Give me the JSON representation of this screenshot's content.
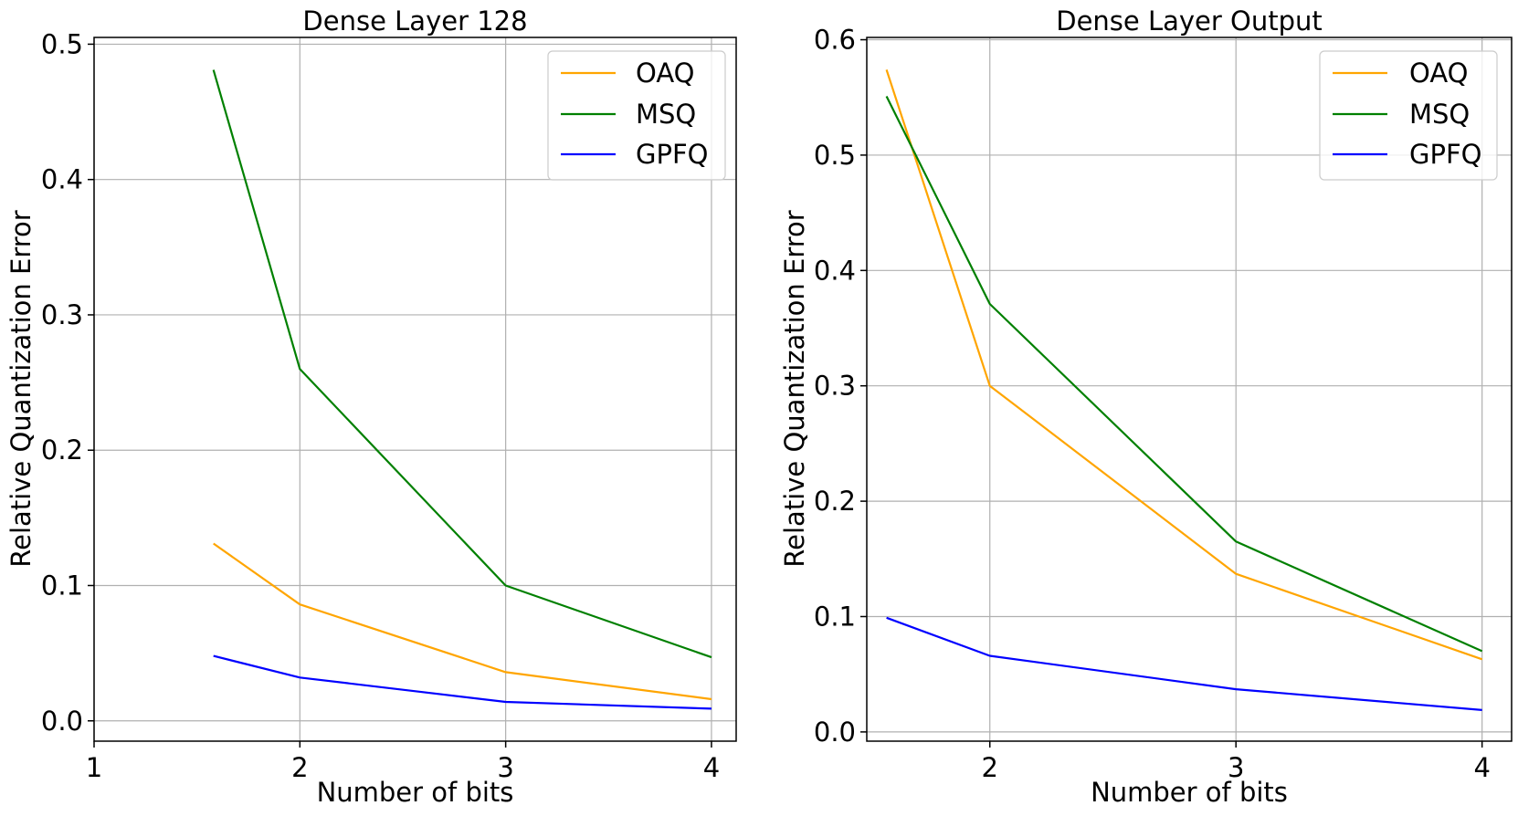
{
  "chart_data": [
    {
      "type": "line",
      "title": "Dense Layer 128",
      "xlabel": "Number of bits",
      "ylabel": "Relative Quantization Error",
      "xlim": [
        1,
        4.12
      ],
      "ylim": [
        -0.015,
        0.505
      ],
      "xticks": [
        1,
        2,
        3,
        4
      ],
      "xtick_labels": [
        "1",
        "2",
        "3",
        "4"
      ],
      "yticks": [
        0.0,
        0.1,
        0.2,
        0.3,
        0.4,
        0.5
      ],
      "ytick_labels": [
        "0.0",
        "0.1",
        "0.2",
        "0.3",
        "0.4",
        "0.5"
      ],
      "grid": true,
      "legend_position": "top-right",
      "x": [
        1.58,
        2,
        3,
        4
      ],
      "series": [
        {
          "name": "OAQ",
          "color": "#ffa500",
          "values": [
            0.131,
            0.086,
            0.036,
            0.016
          ]
        },
        {
          "name": "MSQ",
          "color": "#008000",
          "values": [
            0.481,
            0.26,
            0.1,
            0.047
          ]
        },
        {
          "name": "GPFQ",
          "color": "#0000ff",
          "values": [
            0.048,
            0.032,
            0.014,
            0.009
          ]
        }
      ]
    },
    {
      "type": "line",
      "title": "Dense Layer Output",
      "xlabel": "Number of bits",
      "ylabel": "Relative Quantization Error",
      "xlim": [
        1.5,
        4.12
      ],
      "ylim": [
        -0.008,
        0.602
      ],
      "xticks": [
        2,
        3,
        4
      ],
      "xtick_labels": [
        "2",
        "3",
        "4"
      ],
      "yticks": [
        0.0,
        0.1,
        0.2,
        0.3,
        0.4,
        0.5,
        0.6
      ],
      "ytick_labels": [
        "0.0",
        "0.1",
        "0.2",
        "0.3",
        "0.4",
        "0.5",
        "0.6"
      ],
      "grid": true,
      "legend_position": "top-right",
      "x": [
        1.58,
        2,
        3,
        4
      ],
      "series": [
        {
          "name": "OAQ",
          "color": "#ffa500",
          "values": [
            0.574,
            0.3,
            0.137,
            0.063
          ]
        },
        {
          "name": "MSQ",
          "color": "#008000",
          "values": [
            0.551,
            0.371,
            0.165,
            0.07
          ]
        },
        {
          "name": "GPFQ",
          "color": "#0000ff",
          "values": [
            0.099,
            0.066,
            0.037,
            0.019
          ]
        }
      ]
    }
  ]
}
